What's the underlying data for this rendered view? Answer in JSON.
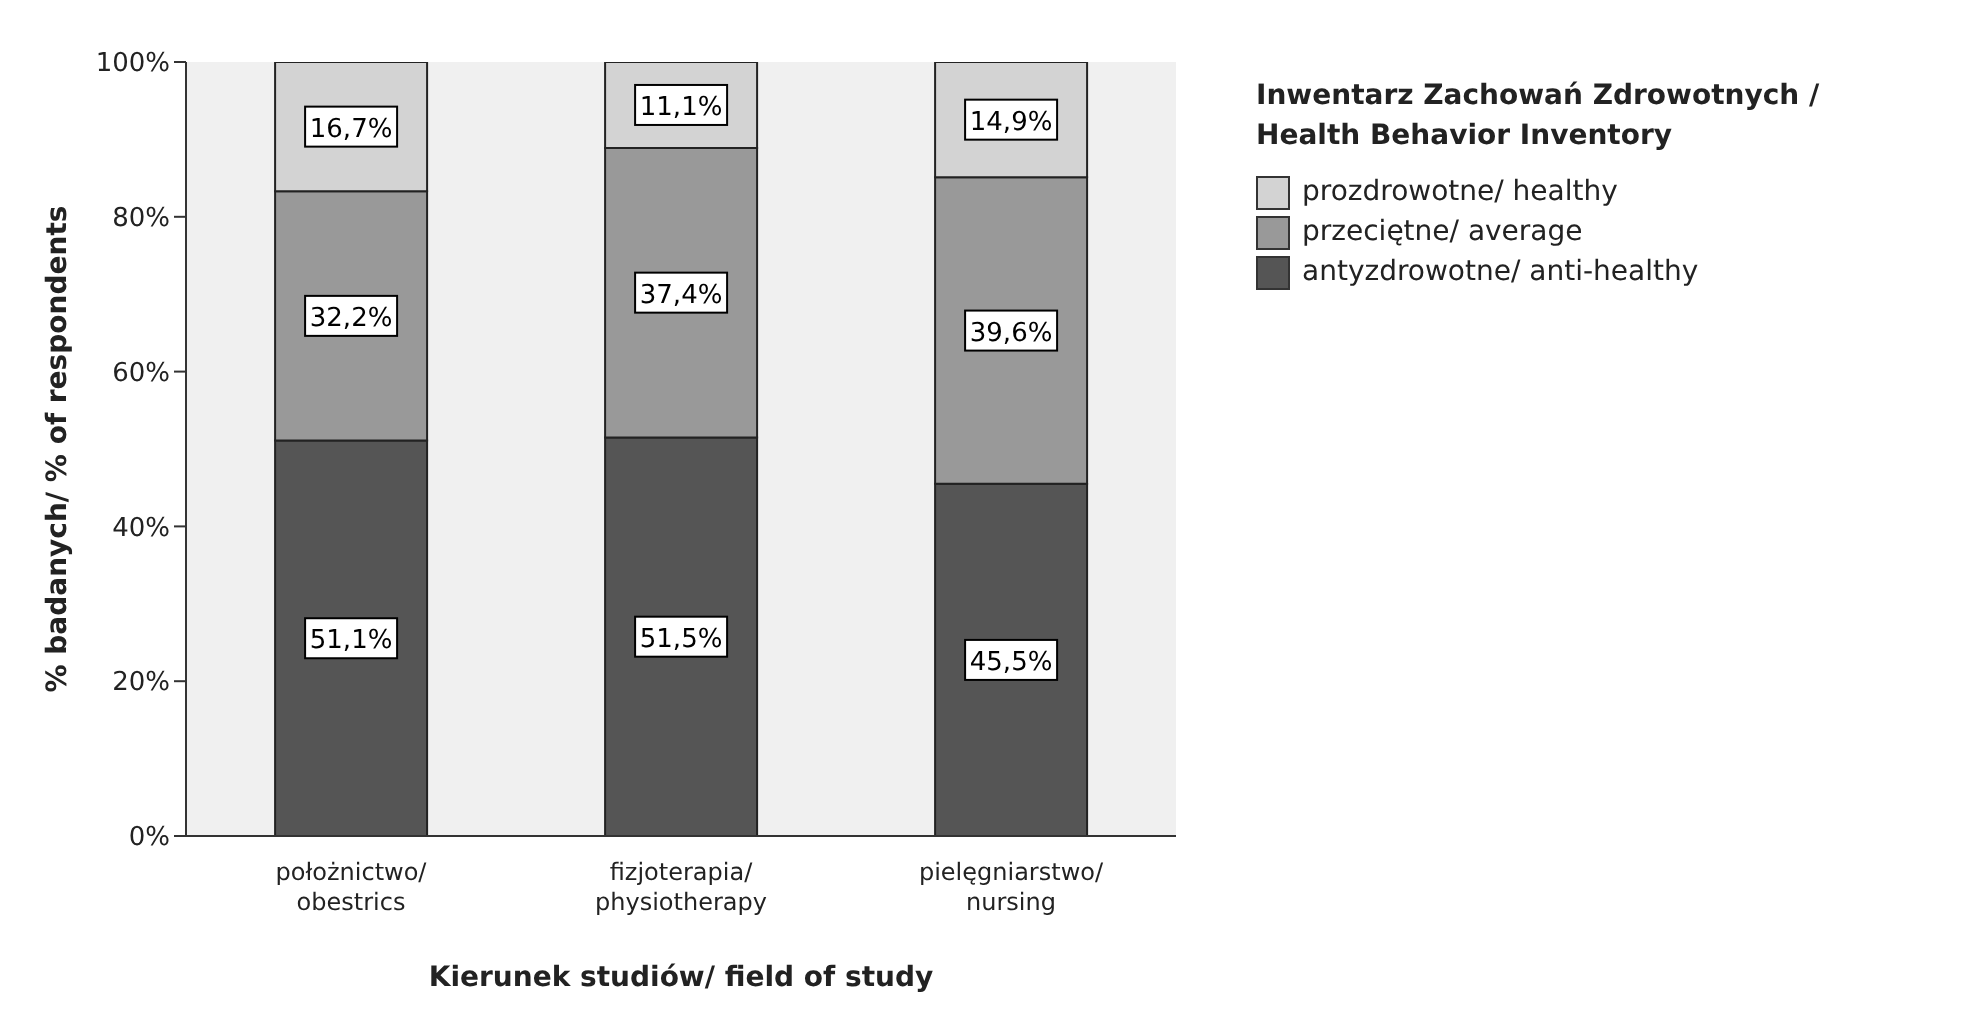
{
  "chart_data": {
    "type": "bar",
    "stacked": true,
    "xlabel": "Kierunek studiów/ field of study",
    "ylabel": "% badanych/ % of respondents",
    "legend_title": "Inwentarz Zachowań Zdrowotnych / Health Behavior Inventory",
    "legend": "top right",
    "grid": false,
    "categories": [
      "położnictwo/ obestrics",
      "fizjoterapia/ physiotherapy",
      "pielęgniarstwo/ nursing"
    ],
    "ylim": [
      0,
      100
    ],
    "yticks": [
      {
        "value": 0,
        "label": "0%"
      },
      {
        "value": 20,
        "label": "20%"
      },
      {
        "value": 40,
        "label": "40%"
      },
      {
        "value": 60,
        "label": "60%"
      },
      {
        "value": 80,
        "label": "80%"
      },
      {
        "value": 100,
        "label": "100%"
      }
    ],
    "series": [
      {
        "name": "antyzdrowotne/ anti-healthy",
        "color": "#555555",
        "values": [
          51.1,
          51.5,
          45.5
        ],
        "value_labels": [
          "51,1%",
          "51,5%",
          "45,5%"
        ]
      },
      {
        "name": "przeciętne/ average",
        "color": "#999999",
        "values": [
          32.2,
          37.4,
          39.6
        ],
        "value_labels": [
          "32,2%",
          "37,4%",
          "39,6%"
        ]
      },
      {
        "name": "prozdrowotne/ healthy",
        "color": "#d3d3d3",
        "values": [
          16.7,
          11.1,
          14.9
        ],
        "value_labels": [
          "16,7%",
          "11,1%",
          "14,9%"
        ]
      }
    ]
  }
}
